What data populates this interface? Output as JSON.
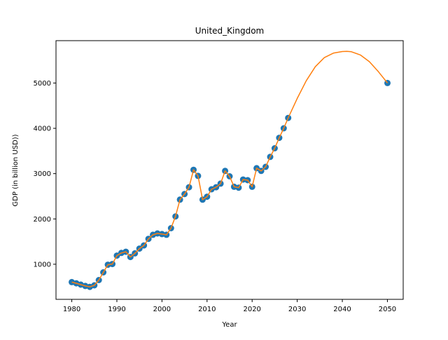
{
  "colors": {
    "points": "#1f77b4",
    "curve": "#ff7f0e",
    "axes": "#000000",
    "background": "#ffffff"
  },
  "chart_data": {
    "type": "scatter",
    "title": "United_Kingdom",
    "xlabel": "Year",
    "ylabel": "GDP (in billion USD))",
    "xlim": [
      1976.5,
      2053.5
    ],
    "ylim": [
      225,
      5935
    ],
    "xticks": [
      1980,
      1990,
      2000,
      2010,
      2020,
      2030,
      2040,
      2050
    ],
    "yticks": [
      1000,
      2000,
      3000,
      4000,
      5000
    ],
    "grid": false,
    "legend": "none",
    "series": [
      {
        "kind": "points",
        "x": [
          1980,
          1981,
          1982,
          1983,
          1984,
          1985,
          1986,
          1987,
          1988,
          1989,
          1990,
          1991,
          1992,
          1993,
          1994,
          1995,
          1996,
          1997,
          1998,
          1999,
          2000,
          2001,
          2002,
          2003,
          2004,
          2005,
          2006,
          2007,
          2008,
          2009,
          2010,
          2011,
          2012,
          2013,
          2014,
          2015,
          2016,
          2017,
          2018,
          2019,
          2020,
          2021,
          2022,
          2023,
          2024,
          2025,
          2026,
          2027,
          2028,
          2050
        ],
        "y": [
          605,
          580,
          550,
          520,
          500,
          535,
          650,
          820,
          990,
          1005,
          1190,
          1250,
          1275,
          1160,
          1240,
          1345,
          1415,
          1560,
          1650,
          1680,
          1665,
          1650,
          1795,
          2055,
          2425,
          2550,
          2700,
          3085,
          2950,
          2425,
          2490,
          2655,
          2700,
          2780,
          3060,
          2940,
          2710,
          2690,
          2870,
          2855,
          2710,
          3120,
          3060,
          3150,
          3370,
          3560,
          3790,
          4000,
          4230,
          5000
        ]
      },
      {
        "kind": "fit",
        "x": [
          1980,
          1981,
          1982,
          1983,
          1984,
          1985,
          1986,
          1987,
          1988,
          1989,
          1990,
          1991,
          1992,
          1993,
          1994,
          1995,
          1996,
          1997,
          1998,
          1999,
          2000,
          2001,
          2002,
          2003,
          2004,
          2005,
          2006,
          2007,
          2008,
          2009,
          2010,
          2011,
          2012,
          2013,
          2014,
          2015,
          2016,
          2017,
          2018,
          2019,
          2020,
          2021,
          2022,
          2023,
          2024,
          2025,
          2026,
          2027,
          2028,
          2030,
          2032,
          2034,
          2036,
          2038,
          2040,
          2041,
          2042,
          2044,
          2046,
          2048,
          2050
        ],
        "y": [
          605,
          580,
          550,
          520,
          500,
          535,
          650,
          820,
          990,
          1005,
          1190,
          1250,
          1275,
          1160,
          1240,
          1345,
          1415,
          1560,
          1650,
          1680,
          1665,
          1650,
          1795,
          2055,
          2425,
          2550,
          2700,
          3085,
          2950,
          2425,
          2490,
          2655,
          2700,
          2780,
          3060,
          2940,
          2710,
          2690,
          2870,
          2855,
          2710,
          3120,
          3060,
          3150,
          3370,
          3560,
          3790,
          4000,
          4230,
          4660,
          5050,
          5360,
          5560,
          5660,
          5695,
          5700,
          5690,
          5620,
          5470,
          5250,
          5000
        ]
      }
    ]
  }
}
